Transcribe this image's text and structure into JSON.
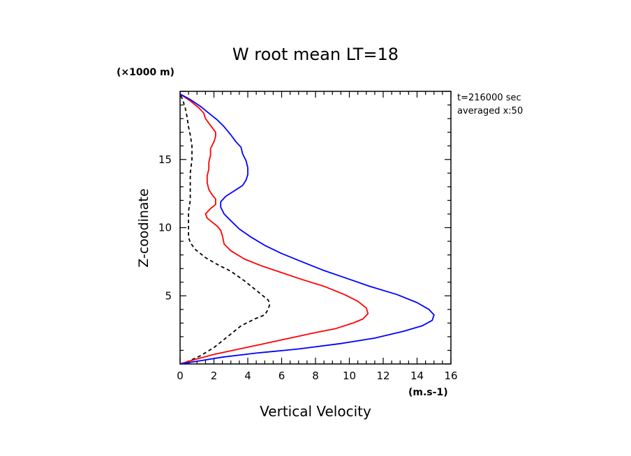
{
  "chart_data": {
    "type": "line",
    "title": "W root mean LT=18",
    "xlabel": "Vertical Velocity",
    "ylabel": "Z-coodinate",
    "x_unit": "(m.s-1)",
    "y_unit": "(×1000 m)",
    "annotations": [
      "t=216000 sec",
      "averaged  x:50"
    ],
    "xlim": [
      0,
      16
    ],
    "ylim": [
      0,
      20
    ],
    "x_ticks": [
      0,
      2,
      4,
      6,
      8,
      10,
      12,
      14,
      16
    ],
    "y_ticks": [
      5,
      10,
      15
    ],
    "grid": false,
    "series": [
      {
        "color": "#000000",
        "style": "dashed",
        "points": [
          [
            0,
            0
          ],
          [
            0.5,
            0.2
          ],
          [
            1.2,
            0.6
          ],
          [
            2.0,
            1.2
          ],
          [
            2.8,
            2.0
          ],
          [
            3.6,
            2.8
          ],
          [
            4.4,
            3.3
          ],
          [
            5.0,
            3.6
          ],
          [
            5.2,
            4.0
          ],
          [
            5.3,
            4.4
          ],
          [
            5.2,
            4.7
          ],
          [
            4.9,
            5.0
          ],
          [
            4.5,
            5.4
          ],
          [
            3.8,
            6.1
          ],
          [
            3.0,
            6.8
          ],
          [
            2.2,
            7.3
          ],
          [
            1.5,
            7.8
          ],
          [
            0.9,
            8.4
          ],
          [
            0.6,
            8.9
          ],
          [
            0.5,
            9.3
          ],
          [
            0.5,
            9.8
          ],
          [
            0.5,
            10.5
          ],
          [
            0.5,
            11.2
          ],
          [
            0.6,
            12.0
          ],
          [
            0.6,
            13.0
          ],
          [
            0.6,
            14.0
          ],
          [
            0.7,
            15.0
          ],
          [
            0.7,
            16.0
          ],
          [
            0.6,
            16.8
          ],
          [
            0.5,
            17.4
          ],
          [
            0.4,
            18.2
          ],
          [
            0.3,
            18.8
          ],
          [
            0.15,
            19.4
          ],
          [
            0,
            19.8
          ]
        ]
      },
      {
        "color": "#ff0000",
        "style": "solid",
        "points": [
          [
            0,
            0
          ],
          [
            0.8,
            0.3
          ],
          [
            2.0,
            0.7
          ],
          [
            3.5,
            1.1
          ],
          [
            5.0,
            1.5
          ],
          [
            6.5,
            1.9
          ],
          [
            8.0,
            2.3
          ],
          [
            9.2,
            2.6
          ],
          [
            10.2,
            3.0
          ],
          [
            10.8,
            3.3
          ],
          [
            11.1,
            3.7
          ],
          [
            11.0,
            4.1
          ],
          [
            10.5,
            4.6
          ],
          [
            9.7,
            5.1
          ],
          [
            8.5,
            5.7
          ],
          [
            7.2,
            6.2
          ],
          [
            6.0,
            6.7
          ],
          [
            4.8,
            7.2
          ],
          [
            3.8,
            7.7
          ],
          [
            3.0,
            8.3
          ],
          [
            2.6,
            8.8
          ],
          [
            2.5,
            9.4
          ],
          [
            2.4,
            9.8
          ],
          [
            2.2,
            10.1
          ],
          [
            1.9,
            10.4
          ],
          [
            1.6,
            10.7
          ],
          [
            1.5,
            11.0
          ],
          [
            1.8,
            11.4
          ],
          [
            2.1,
            11.7
          ],
          [
            2.1,
            12.1
          ],
          [
            1.9,
            12.4
          ],
          [
            1.7,
            12.8
          ],
          [
            1.6,
            13.3
          ],
          [
            1.6,
            13.8
          ],
          [
            1.7,
            14.3
          ],
          [
            1.7,
            14.8
          ],
          [
            1.8,
            15.3
          ],
          [
            1.8,
            15.8
          ],
          [
            2.0,
            16.3
          ],
          [
            2.1,
            16.7
          ],
          [
            2.1,
            17.0
          ],
          [
            1.8,
            17.5
          ],
          [
            1.5,
            18.0
          ],
          [
            1.4,
            18.4
          ],
          [
            1.1,
            18.8
          ],
          [
            0.6,
            19.3
          ],
          [
            0,
            19.8
          ]
        ]
      },
      {
        "color": "#0000ff",
        "style": "solid",
        "points": [
          [
            0,
            0
          ],
          [
            1.0,
            0.2
          ],
          [
            2.5,
            0.5
          ],
          [
            4.5,
            0.8
          ],
          [
            7.0,
            1.1
          ],
          [
            9.5,
            1.5
          ],
          [
            11.5,
            1.9
          ],
          [
            13.2,
            2.4
          ],
          [
            14.3,
            2.8
          ],
          [
            14.9,
            3.2
          ],
          [
            15.0,
            3.6
          ],
          [
            14.7,
            4.0
          ],
          [
            14.0,
            4.5
          ],
          [
            12.8,
            5.1
          ],
          [
            11.2,
            5.7
          ],
          [
            9.8,
            6.3
          ],
          [
            8.4,
            6.9
          ],
          [
            7.2,
            7.5
          ],
          [
            6.0,
            8.1
          ],
          [
            5.0,
            8.7
          ],
          [
            4.2,
            9.3
          ],
          [
            3.5,
            9.9
          ],
          [
            3.0,
            10.5
          ],
          [
            2.6,
            11.0
          ],
          [
            2.4,
            11.5
          ],
          [
            2.4,
            11.9
          ],
          [
            2.7,
            12.3
          ],
          [
            3.2,
            12.7
          ],
          [
            3.7,
            13.1
          ],
          [
            3.9,
            13.5
          ],
          [
            4.0,
            13.9
          ],
          [
            4.0,
            14.4
          ],
          [
            3.9,
            14.9
          ],
          [
            3.7,
            15.4
          ],
          [
            3.6,
            15.9
          ],
          [
            3.3,
            16.3
          ],
          [
            3.0,
            16.8
          ],
          [
            2.6,
            17.4
          ],
          [
            2.2,
            17.9
          ],
          [
            1.7,
            18.4
          ],
          [
            1.2,
            18.9
          ],
          [
            0.6,
            19.4
          ],
          [
            0,
            19.8
          ]
        ]
      }
    ]
  }
}
